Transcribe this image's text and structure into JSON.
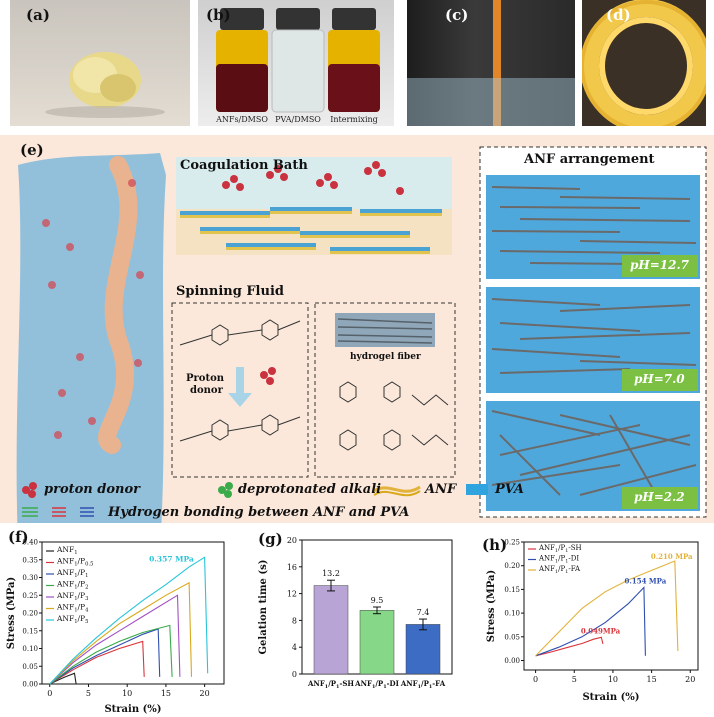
{
  "panels": {
    "a": {
      "label": "(a)"
    },
    "b": {
      "label": "(b)",
      "vial_labels": [
        "ANFs/DMSO",
        "PVA/DMSO",
        "Intermixing"
      ]
    },
    "c": {
      "label": "(c)"
    },
    "d": {
      "label": "(d)"
    },
    "e": {
      "label": "(e)",
      "coagulation_title": "Coagulation Bath",
      "spinning_title": "Spinning Fluid",
      "arrangement_title": "ANF arrangement",
      "proton_donor_text_1": "Proton",
      "proton_donor_text_2": "donor",
      "hydrogel_label": "hydrogel fiber",
      "ph_labels": [
        "pH=12.7",
        "pH=7.0",
        "pH=2.2"
      ],
      "legend": {
        "proton_donor": "proton donor",
        "deprotonated_alkali": "deprotonated alkali",
        "anf": "ANF",
        "pva": "PVA",
        "hbond": "Hydrogen bonding between ANF and PVA"
      }
    }
  },
  "chart_data": [
    {
      "panel": "(f)",
      "type": "line",
      "xlabel": "Strain (%)",
      "ylabel": "Stress (MPa)",
      "xlim": [
        -1,
        22.5
      ],
      "ylim": [
        0,
        0.4
      ],
      "xticks": [
        0,
        5,
        10,
        15,
        20
      ],
      "yticks": [
        0.0,
        0.05,
        0.1,
        0.15,
        0.2,
        0.25,
        0.3,
        0.35,
        0.4
      ],
      "ytick_labels": [
        "0.00",
        "0.05",
        "0.10",
        "0.15",
        "0.20",
        "0.25",
        "0.30",
        "0.35",
        "0.40"
      ],
      "annotation": "0.357 MPa",
      "series": [
        {
          "name": "ANF1",
          "name_base": "ANF",
          "name_sub": "1",
          "color": "#222222",
          "x": [
            0,
            1,
            2,
            3.2,
            3.4
          ],
          "y": [
            0,
            0.01,
            0.02,
            0.03,
            0.0
          ]
        },
        {
          "name": "ANF1/P0.5",
          "name_base": "ANF",
          "name_sub": "1",
          "name_mid": "/P",
          "name_sub2": "0.5",
          "color": "#d9343a",
          "x": [
            0,
            3,
            6,
            9,
            12,
            12.2
          ],
          "y": [
            0,
            0.04,
            0.075,
            0.1,
            0.12,
            0.02
          ]
        },
        {
          "name": "ANF1/P1",
          "name_base": "ANF",
          "name_sub": "1",
          "name_mid": "/P",
          "name_sub2": "1",
          "color": "#2f4fb0",
          "x": [
            0,
            3,
            6,
            9,
            12,
            14,
            14.2
          ],
          "y": [
            0,
            0.045,
            0.08,
            0.11,
            0.14,
            0.155,
            0.02
          ]
        },
        {
          "name": "ANF1/P2",
          "name_base": "ANF",
          "name_sub": "1",
          "name_mid": "/P",
          "name_sub2": "2",
          "color": "#3aaa4a",
          "x": [
            0,
            3,
            6,
            9,
            12,
            15.5,
            15.8
          ],
          "y": [
            0,
            0.05,
            0.09,
            0.12,
            0.145,
            0.165,
            0.02
          ]
        },
        {
          "name": "ANF1/P3",
          "name_base": "ANF",
          "name_sub": "1",
          "name_mid": "/P",
          "name_sub2": "3",
          "color": "#a34fc4",
          "x": [
            0,
            3,
            6,
            9,
            12,
            16.5,
            16.8
          ],
          "y": [
            0,
            0.06,
            0.11,
            0.15,
            0.19,
            0.25,
            0.02
          ]
        },
        {
          "name": "ANF1/P4",
          "name_base": "ANF",
          "name_sub": "1",
          "name_mid": "/P",
          "name_sub2": "4",
          "color": "#d9a91a",
          "x": [
            0,
            3,
            6,
            9,
            12,
            15,
            18,
            18.3
          ],
          "y": [
            0,
            0.065,
            0.12,
            0.17,
            0.21,
            0.25,
            0.285,
            0.02
          ]
        },
        {
          "name": "ANF1/P5",
          "name_base": "ANF",
          "name_sub": "1",
          "name_mid": "/P",
          "name_sub2": "5",
          "color": "#28c4d8",
          "x": [
            0,
            3,
            6,
            9,
            12,
            15,
            18,
            20,
            20.4
          ],
          "y": [
            0,
            0.07,
            0.13,
            0.185,
            0.235,
            0.28,
            0.33,
            0.357,
            0.03
          ]
        }
      ]
    },
    {
      "panel": "(g)",
      "type": "bar",
      "ylabel": "Gelation time (s)",
      "ylim": [
        0,
        20
      ],
      "yticks": [
        0,
        4,
        8,
        12,
        16,
        20
      ],
      "categories": [
        "ANF1/P1-SH",
        "ANF1/P1-DI",
        "ANF1/P1-FA"
      ],
      "category_parts": [
        [
          "ANF",
          "1",
          "/P",
          "1",
          "-SH"
        ],
        [
          "ANF",
          "1",
          "/P",
          "1",
          "-DI"
        ],
        [
          "ANF",
          "1",
          "/P",
          "1",
          "-FA"
        ]
      ],
      "values": [
        13.2,
        9.5,
        7.4
      ],
      "errors": [
        0.8,
        0.5,
        0.8
      ],
      "value_labels": [
        "13.2",
        "9.5",
        "7.4"
      ],
      "colors": [
        "#b9a4d6",
        "#86d888",
        "#3c6cc4"
      ]
    },
    {
      "panel": "(h)",
      "type": "line",
      "xlabel": "Strain (%)",
      "ylabel": "Stress (MPa)",
      "xlim": [
        -1.5,
        21
      ],
      "ylim": [
        -0.02,
        0.25
      ],
      "xticks": [
        0,
        5,
        10,
        15,
        20
      ],
      "yticks": [
        0.0,
        0.05,
        0.1,
        0.15,
        0.2,
        0.25
      ],
      "ytick_labels": [
        "0.00",
        "0.05",
        "0.10",
        "0.15",
        "0.20",
        "0.25"
      ],
      "annotations": [
        "0.049MPa",
        "0.154 MPa",
        "0.210 MPa"
      ],
      "series": [
        {
          "name": "ANF1/P1-SH",
          "parts": [
            "ANF",
            "1",
            "/P",
            "1",
            "-SH"
          ],
          "color": "#d9343a",
          "x": [
            0,
            2,
            4,
            6,
            7.5,
            8.5,
            8.7
          ],
          "y": [
            0.01,
            0.018,
            0.027,
            0.036,
            0.045,
            0.049,
            0.035
          ]
        },
        {
          "name": "ANF1/P1-DI",
          "parts": [
            "ANF",
            "1",
            "/P",
            "1",
            "-DI"
          ],
          "color": "#2f4fb0",
          "x": [
            0,
            3,
            6,
            9,
            12,
            14,
            14.2
          ],
          "y": [
            0.01,
            0.028,
            0.05,
            0.08,
            0.12,
            0.154,
            0.01
          ]
        },
        {
          "name": "ANF1/P1-FA",
          "parts": [
            "ANF",
            "1",
            "/P",
            "1",
            "-FA"
          ],
          "color": "#e2b23a",
          "x": [
            0,
            3,
            6,
            9,
            12,
            15,
            18,
            18.4
          ],
          "y": [
            0.01,
            0.06,
            0.11,
            0.145,
            0.17,
            0.19,
            0.21,
            0.02
          ]
        }
      ]
    }
  ],
  "panel_labels": {
    "f": "(f)",
    "g": "(g)",
    "h": "(h)"
  }
}
